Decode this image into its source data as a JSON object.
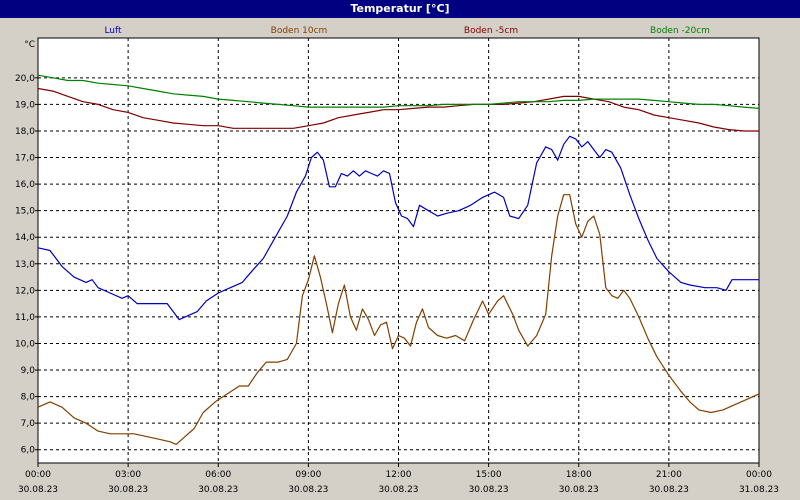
{
  "window": {
    "title": "Temperatur [°C]"
  },
  "chart_data": {
    "type": "line",
    "title": "Temperatur [°C]",
    "ylabel": "°C",
    "ylim": [
      5.5,
      21.5
    ],
    "yticks": [
      6.0,
      7.0,
      8.0,
      9.0,
      10.0,
      11.0,
      12.0,
      13.0,
      14.0,
      15.0,
      16.0,
      17.0,
      18.0,
      19.0,
      20.0
    ],
    "xlim": [
      0,
      24
    ],
    "xticks": [
      {
        "t": 0,
        "time": "00:00",
        "date": "30.08.23"
      },
      {
        "t": 3,
        "time": "03:00",
        "date": "30.08.23"
      },
      {
        "t": 6,
        "time": "06:00",
        "date": "30.08.23"
      },
      {
        "t": 9,
        "time": "09:00",
        "date": "30.08.23"
      },
      {
        "t": 12,
        "time": "12:00",
        "date": "30.08.23"
      },
      {
        "t": 15,
        "time": "15:00",
        "date": "30.08.23"
      },
      {
        "t": 18,
        "time": "18:00",
        "date": "30.08.23"
      },
      {
        "t": 21,
        "time": "21:00",
        "date": "30.08.23"
      },
      {
        "t": 24,
        "time": "00:00",
        "date": "31.08.23"
      }
    ],
    "grid": true,
    "legend_position": "top",
    "series": [
      {
        "name": "Luft",
        "color": "#0000c0",
        "points": [
          [
            0,
            13.6
          ],
          [
            0.4,
            13.5
          ],
          [
            0.8,
            12.9
          ],
          [
            1.2,
            12.5
          ],
          [
            1.6,
            12.3
          ],
          [
            1.8,
            12.4
          ],
          [
            2.0,
            12.1
          ],
          [
            2.4,
            11.9
          ],
          [
            2.8,
            11.7
          ],
          [
            3.0,
            11.8
          ],
          [
            3.3,
            11.5
          ],
          [
            4.3,
            11.5
          ],
          [
            4.7,
            10.9
          ],
          [
            5.3,
            11.2
          ],
          [
            5.6,
            11.6
          ],
          [
            6.0,
            11.9
          ],
          [
            6.4,
            12.1
          ],
          [
            6.8,
            12.3
          ],
          [
            7.1,
            12.7
          ],
          [
            7.5,
            13.2
          ],
          [
            7.9,
            14.0
          ],
          [
            8.3,
            14.8
          ],
          [
            8.6,
            15.7
          ],
          [
            8.9,
            16.3
          ],
          [
            9.1,
            17.0
          ],
          [
            9.3,
            17.2
          ],
          [
            9.5,
            16.9
          ],
          [
            9.7,
            15.9
          ],
          [
            9.9,
            15.9
          ],
          [
            10.1,
            16.4
          ],
          [
            10.3,
            16.3
          ],
          [
            10.5,
            16.5
          ],
          [
            10.7,
            16.3
          ],
          [
            10.9,
            16.5
          ],
          [
            11.1,
            16.4
          ],
          [
            11.3,
            16.3
          ],
          [
            11.5,
            16.5
          ],
          [
            11.7,
            16.4
          ],
          [
            11.9,
            15.3
          ],
          [
            12.1,
            14.8
          ],
          [
            12.3,
            14.7
          ],
          [
            12.5,
            14.4
          ],
          [
            12.7,
            15.2
          ],
          [
            13.0,
            15.0
          ],
          [
            13.3,
            14.8
          ],
          [
            13.6,
            14.9
          ],
          [
            14.0,
            15.0
          ],
          [
            14.4,
            15.2
          ],
          [
            14.8,
            15.5
          ],
          [
            15.2,
            15.7
          ],
          [
            15.5,
            15.5
          ],
          [
            15.7,
            14.8
          ],
          [
            16.0,
            14.7
          ],
          [
            16.3,
            15.2
          ],
          [
            16.6,
            16.8
          ],
          [
            16.9,
            17.4
          ],
          [
            17.1,
            17.3
          ],
          [
            17.3,
            16.9
          ],
          [
            17.5,
            17.5
          ],
          [
            17.7,
            17.8
          ],
          [
            17.9,
            17.7
          ],
          [
            18.1,
            17.4
          ],
          [
            18.3,
            17.6
          ],
          [
            18.5,
            17.3
          ],
          [
            18.7,
            17.0
          ],
          [
            18.9,
            17.3
          ],
          [
            19.1,
            17.2
          ],
          [
            19.4,
            16.6
          ],
          [
            19.7,
            15.6
          ],
          [
            20.0,
            14.7
          ],
          [
            20.3,
            13.9
          ],
          [
            20.6,
            13.2
          ],
          [
            21.0,
            12.7
          ],
          [
            21.4,
            12.3
          ],
          [
            21.7,
            12.2
          ],
          [
            22.2,
            12.1
          ],
          [
            22.6,
            12.1
          ],
          [
            22.9,
            12.0
          ],
          [
            23.1,
            12.4
          ],
          [
            24.0,
            12.4
          ]
        ]
      },
      {
        "name": "Boden 10cm",
        "color": "#804000",
        "points": [
          [
            0,
            7.6
          ],
          [
            0.4,
            7.8
          ],
          [
            0.8,
            7.6
          ],
          [
            1.2,
            7.2
          ],
          [
            1.6,
            7.0
          ],
          [
            2.0,
            6.7
          ],
          [
            2.4,
            6.6
          ],
          [
            2.8,
            6.6
          ],
          [
            3.2,
            6.6
          ],
          [
            3.6,
            6.5
          ],
          [
            4.0,
            6.4
          ],
          [
            4.4,
            6.3
          ],
          [
            4.6,
            6.2
          ],
          [
            4.9,
            6.5
          ],
          [
            5.2,
            6.8
          ],
          [
            5.5,
            7.4
          ],
          [
            5.9,
            7.8
          ],
          [
            6.3,
            8.1
          ],
          [
            6.7,
            8.4
          ],
          [
            7.0,
            8.4
          ],
          [
            7.3,
            8.9
          ],
          [
            7.6,
            9.3
          ],
          [
            8.0,
            9.3
          ],
          [
            8.3,
            9.4
          ],
          [
            8.6,
            10.0
          ],
          [
            8.8,
            11.8
          ],
          [
            9.0,
            12.4
          ],
          [
            9.2,
            13.3
          ],
          [
            9.4,
            12.5
          ],
          [
            9.6,
            11.5
          ],
          [
            9.8,
            10.4
          ],
          [
            10.0,
            11.5
          ],
          [
            10.2,
            12.2
          ],
          [
            10.4,
            11.0
          ],
          [
            10.6,
            10.5
          ],
          [
            10.8,
            11.3
          ],
          [
            11.0,
            10.9
          ],
          [
            11.2,
            10.3
          ],
          [
            11.4,
            10.7
          ],
          [
            11.6,
            10.8
          ],
          [
            11.8,
            9.8
          ],
          [
            12.0,
            10.3
          ],
          [
            12.2,
            10.2
          ],
          [
            12.4,
            9.9
          ],
          [
            12.6,
            10.8
          ],
          [
            12.8,
            11.3
          ],
          [
            13.0,
            10.6
          ],
          [
            13.3,
            10.3
          ],
          [
            13.6,
            10.2
          ],
          [
            13.9,
            10.3
          ],
          [
            14.2,
            10.1
          ],
          [
            14.5,
            10.9
          ],
          [
            14.8,
            11.6
          ],
          [
            15.0,
            11.1
          ],
          [
            15.3,
            11.6
          ],
          [
            15.5,
            11.8
          ],
          [
            15.8,
            11.1
          ],
          [
            16.0,
            10.5
          ],
          [
            16.3,
            9.9
          ],
          [
            16.6,
            10.3
          ],
          [
            16.9,
            11.1
          ],
          [
            17.1,
            13.3
          ],
          [
            17.3,
            14.8
          ],
          [
            17.5,
            15.6
          ],
          [
            17.7,
            15.6
          ],
          [
            17.9,
            14.5
          ],
          [
            18.1,
            14.0
          ],
          [
            18.3,
            14.6
          ],
          [
            18.5,
            14.8
          ],
          [
            18.7,
            14.1
          ],
          [
            18.9,
            12.1
          ],
          [
            19.1,
            11.8
          ],
          [
            19.3,
            11.7
          ],
          [
            19.5,
            12.0
          ],
          [
            19.7,
            11.7
          ],
          [
            20.0,
            11.0
          ],
          [
            20.3,
            10.2
          ],
          [
            20.6,
            9.5
          ],
          [
            21.0,
            8.8
          ],
          [
            21.4,
            8.2
          ],
          [
            21.7,
            7.8
          ],
          [
            22.0,
            7.5
          ],
          [
            22.4,
            7.4
          ],
          [
            22.8,
            7.5
          ],
          [
            23.2,
            7.7
          ],
          [
            23.6,
            7.9
          ],
          [
            24.0,
            8.1
          ]
        ]
      },
      {
        "name": "Boden -5cm",
        "color": "#800000",
        "points": [
          [
            0,
            19.6
          ],
          [
            0.5,
            19.5
          ],
          [
            1.0,
            19.3
          ],
          [
            1.5,
            19.1
          ],
          [
            2.0,
            19.0
          ],
          [
            2.5,
            18.8
          ],
          [
            3.0,
            18.7
          ],
          [
            3.5,
            18.5
          ],
          [
            4.0,
            18.4
          ],
          [
            4.5,
            18.3
          ],
          [
            5.0,
            18.25
          ],
          [
            5.5,
            18.2
          ],
          [
            6.0,
            18.2
          ],
          [
            6.5,
            18.1
          ],
          [
            7.0,
            18.1
          ],
          [
            7.5,
            18.1
          ],
          [
            8.0,
            18.1
          ],
          [
            8.5,
            18.1
          ],
          [
            9.0,
            18.2
          ],
          [
            9.5,
            18.3
          ],
          [
            10.0,
            18.5
          ],
          [
            10.5,
            18.6
          ],
          [
            11.0,
            18.7
          ],
          [
            11.5,
            18.8
          ],
          [
            12.0,
            18.8
          ],
          [
            12.5,
            18.85
          ],
          [
            13.0,
            18.9
          ],
          [
            13.5,
            18.9
          ],
          [
            14.0,
            18.95
          ],
          [
            14.5,
            19.0
          ],
          [
            15.0,
            19.0
          ],
          [
            15.5,
            19.0
          ],
          [
            16.0,
            19.05
          ],
          [
            16.5,
            19.1
          ],
          [
            17.0,
            19.2
          ],
          [
            17.5,
            19.3
          ],
          [
            18.0,
            19.3
          ],
          [
            18.5,
            19.2
          ],
          [
            19.0,
            19.1
          ],
          [
            19.5,
            18.9
          ],
          [
            20.0,
            18.8
          ],
          [
            20.5,
            18.6
          ],
          [
            21.0,
            18.5
          ],
          [
            21.5,
            18.4
          ],
          [
            22.0,
            18.3
          ],
          [
            22.5,
            18.15
          ],
          [
            23.0,
            18.05
          ],
          [
            23.5,
            18.0
          ],
          [
            24.0,
            18.0
          ]
        ]
      },
      {
        "name": "Boden -20cm",
        "color": "#008000",
        "points": [
          [
            0,
            20.1
          ],
          [
            0.5,
            20.0
          ],
          [
            1.0,
            19.9
          ],
          [
            1.5,
            19.9
          ],
          [
            2.0,
            19.8
          ],
          [
            2.5,
            19.75
          ],
          [
            3.0,
            19.7
          ],
          [
            3.5,
            19.6
          ],
          [
            4.0,
            19.5
          ],
          [
            4.5,
            19.4
          ],
          [
            5.0,
            19.35
          ],
          [
            5.5,
            19.3
          ],
          [
            6.0,
            19.2
          ],
          [
            6.5,
            19.15
          ],
          [
            7.0,
            19.1
          ],
          [
            7.5,
            19.05
          ],
          [
            8.0,
            19.0
          ],
          [
            8.5,
            18.95
          ],
          [
            9.0,
            18.9
          ],
          [
            9.5,
            18.9
          ],
          [
            10.0,
            18.9
          ],
          [
            10.5,
            18.9
          ],
          [
            11.0,
            18.9
          ],
          [
            11.5,
            18.9
          ],
          [
            12.0,
            18.95
          ],
          [
            12.5,
            18.95
          ],
          [
            13.0,
            18.95
          ],
          [
            13.5,
            19.0
          ],
          [
            14.0,
            19.0
          ],
          [
            14.5,
            19.0
          ],
          [
            15.0,
            19.0
          ],
          [
            15.5,
            19.05
          ],
          [
            16.0,
            19.1
          ],
          [
            16.5,
            19.1
          ],
          [
            17.0,
            19.1
          ],
          [
            17.5,
            19.15
          ],
          [
            18.0,
            19.15
          ],
          [
            18.5,
            19.2
          ],
          [
            19.0,
            19.2
          ],
          [
            19.5,
            19.2
          ],
          [
            20.0,
            19.2
          ],
          [
            20.5,
            19.15
          ],
          [
            21.0,
            19.1
          ],
          [
            21.5,
            19.05
          ],
          [
            22.0,
            19.0
          ],
          [
            22.5,
            19.0
          ],
          [
            23.0,
            18.95
          ],
          [
            23.5,
            18.9
          ],
          [
            24.0,
            18.85
          ]
        ]
      }
    ]
  }
}
